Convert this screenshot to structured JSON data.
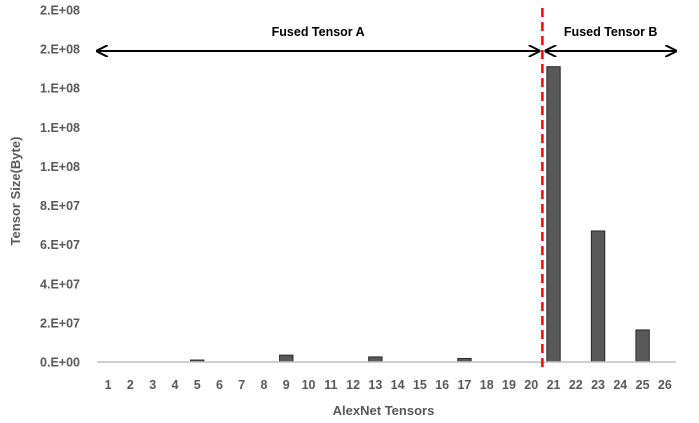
{
  "chart_data": {
    "type": "bar",
    "xlabel": "AlexNet Tensors",
    "ylabel": "Tensor Size(Byte)",
    "ylim": [
      0,
      180000000
    ],
    "y_ticks": [
      0,
      20000000,
      40000000,
      60000000,
      80000000,
      100000000,
      120000000,
      140000000,
      160000000,
      180000000
    ],
    "y_tick_labels": [
      "0.E+00",
      "2.E+07",
      "4.E+07",
      "6.E+07",
      "8.E+07",
      "1.E+08",
      "1.E+08",
      "1.E+08",
      "2.E+08",
      "2.E+08"
    ],
    "categories": [
      "1",
      "2",
      "3",
      "4",
      "5",
      "6",
      "7",
      "8",
      "9",
      "10",
      "11",
      "12",
      "13",
      "14",
      "15",
      "16",
      "17",
      "18",
      "19",
      "20",
      "21",
      "22",
      "23",
      "24",
      "25",
      "26"
    ],
    "values": [
      0,
      0,
      0,
      0,
      1000000,
      0,
      0,
      0,
      3500000,
      0,
      0,
      0,
      2600000,
      0,
      0,
      0,
      1800000,
      0,
      0,
      0,
      151000000,
      0,
      67000000,
      0,
      16400000,
      0
    ],
    "colors": {
      "bar": "#595959",
      "bar_stroke": "#262626",
      "divider": "#ff0000",
      "axis": "#bfbfbf",
      "arrow": "#000000"
    },
    "annotations": [
      {
        "text": "Fused Tensor A",
        "from_category": "1",
        "to_category": "20"
      },
      {
        "text": "Fused Tensor B",
        "from_category": "21",
        "to_category": "26"
      }
    ],
    "divider_between": [
      "20",
      "21"
    ],
    "grid": false
  }
}
